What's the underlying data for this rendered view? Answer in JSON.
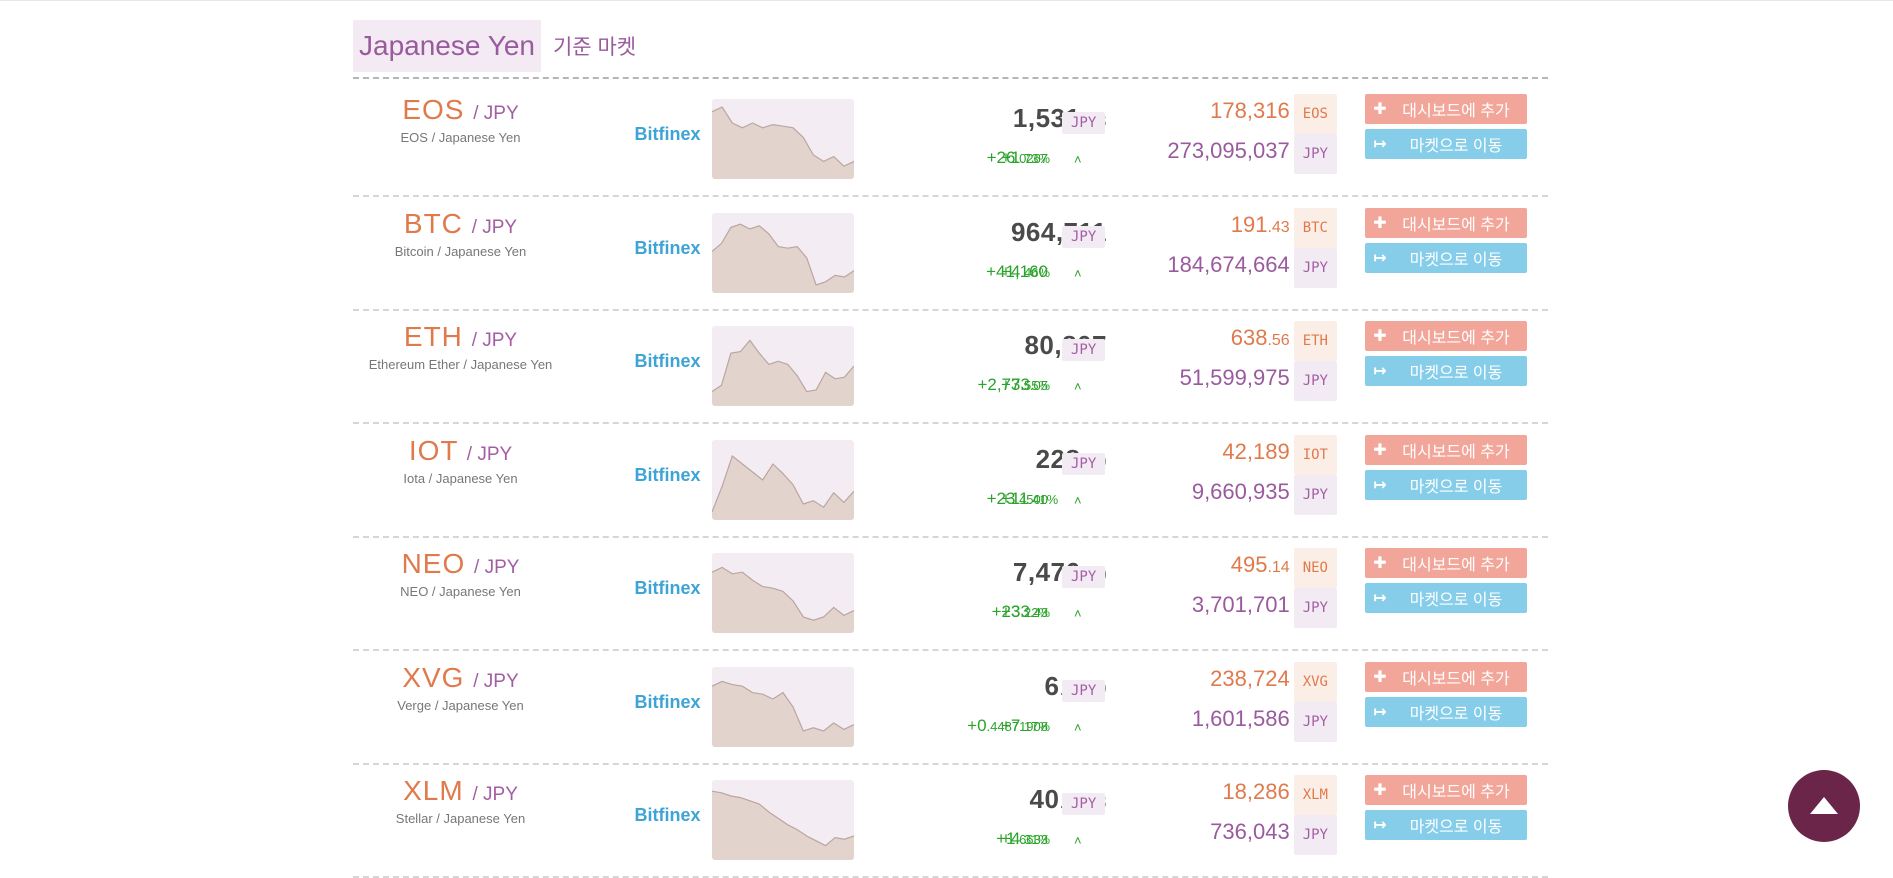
{
  "header": {
    "title": "Japanese Yen",
    "subtitle": "기준 마켓"
  },
  "buttons": {
    "add_label": "대시보드에 추가",
    "go_label": "마켓으로 이동"
  },
  "quote_tag": "JPY",
  "colors": {
    "accent_orange": "#e07a4c",
    "accent_purple": "#9a5a9e",
    "exchange_blue": "#3ea4d6",
    "positive_green": "#2aa32a",
    "add_button": "#f2a69a",
    "go_button": "#86cde9",
    "scroll_top_button": "#6a2549"
  },
  "markets": [
    {
      "symbol": "EOS",
      "quote": "/ JPY",
      "name": "EOS / Japanese Yen",
      "exchange": "Bitfinex",
      "price_int": "1,531",
      "price_dec": ".53",
      "change_int": "+26",
      "change_dec": ".0267",
      "pct_int": "+1",
      "pct_dec": ".73%",
      "vol_coin_int": "178,316",
      "vol_coin_dec": "",
      "vol_jpy": "273,095,037",
      "spark": [
        0.84,
        0.9,
        0.7,
        0.64,
        0.7,
        0.64,
        0.68,
        0.66,
        0.64,
        0.52,
        0.3,
        0.22,
        0.28,
        0.16,
        0.22
      ]
    },
    {
      "symbol": "BTC",
      "quote": "/ JPY",
      "name": "Bitcoin / Japanese Yen",
      "exchange": "Bitfinex",
      "price_int": "964,711",
      "price_dec": "",
      "change_int": "+41,160",
      "change_dec": "",
      "pct_int": "+4",
      "pct_dec": ".46%",
      "vol_coin_int": "191",
      "vol_coin_dec": ".43",
      "vol_jpy": "184,674,664",
      "spark": [
        0.52,
        0.62,
        0.82,
        0.86,
        0.8,
        0.84,
        0.74,
        0.58,
        0.56,
        0.58,
        0.44,
        0.1,
        0.14,
        0.22,
        0.2,
        0.28
      ]
    },
    {
      "symbol": "ETH",
      "quote": "/ JPY",
      "name": "Ethereum Ether / Japanese Yen",
      "exchange": "Bitfinex",
      "price_int": "80,807",
      "price_dec": "",
      "change_int": "+2,773",
      "change_dec": ".05",
      "pct_int": "+3",
      "pct_dec": ".55%",
      "vol_coin_int": "638",
      "vol_coin_dec": ".56",
      "vol_jpy": "51,599,975",
      "spark": [
        0.18,
        0.26,
        0.66,
        0.68,
        0.82,
        0.66,
        0.52,
        0.56,
        0.52,
        0.38,
        0.18,
        0.2,
        0.42,
        0.34,
        0.36,
        0.5
      ]
    },
    {
      "symbol": "IOT",
      "quote": "/ JPY",
      "name": "Iota / Japanese Yen",
      "exchange": "Bitfinex",
      "price_int": "228",
      "price_dec": ".99",
      "change_int": "+23",
      "change_dec": ".4500",
      "pct_int": "+11",
      "pct_dec": ".41%",
      "vol_coin_int": "42,189",
      "vol_coin_dec": "",
      "vol_jpy": "9,660,935",
      "spark": [
        0.1,
        0.42,
        0.8,
        0.7,
        0.6,
        0.5,
        0.7,
        0.58,
        0.44,
        0.2,
        0.24,
        0.16,
        0.34,
        0.22,
        0.36
      ]
    },
    {
      "symbol": "NEO",
      "quote": "/ JPY",
      "name": "NEO / Japanese Yen",
      "exchange": "Bitfinex",
      "price_int": "7,476",
      "price_dec": ".10",
      "change_int": "+233",
      "change_dec": ".43",
      "pct_int": "+3",
      "pct_dec": ".22%",
      "vol_coin_int": "495",
      "vol_coin_dec": ".14",
      "vol_jpy": "3,701,701",
      "spark": [
        0.76,
        0.82,
        0.74,
        0.76,
        0.66,
        0.58,
        0.56,
        0.52,
        0.4,
        0.2,
        0.16,
        0.2,
        0.32,
        0.22,
        0.28
      ]
    },
    {
      "symbol": "XVG",
      "quote": "/ JPY",
      "name": "Verge / Japanese Yen",
      "exchange": "Bitfinex",
      "price_int": "6",
      "price_dec": ".7089",
      "change_int": "+0",
      "change_dec": ".44871908",
      "pct_int": "+7",
      "pct_dec": ".17%",
      "vol_coin_int": "238,724",
      "vol_coin_dec": "",
      "vol_jpy": "1,601,586",
      "spark": [
        0.76,
        0.82,
        0.78,
        0.76,
        0.68,
        0.66,
        0.6,
        0.68,
        0.5,
        0.2,
        0.24,
        0.2,
        0.3,
        0.22,
        0.28
      ]
    },
    {
      "symbol": "XLM",
      "quote": "/ JPY",
      "name": "Stellar / Japanese Yen",
      "exchange": "Bitfinex",
      "price_int": "40",
      "price_dec": ".2523",
      "change_int": "+1",
      "change_dec": ".6633",
      "pct_int": "+4",
      "pct_dec": ".31%",
      "vol_coin_int": "18,286",
      "vol_coin_dec": "",
      "vol_jpy": "736,043",
      "spark": [
        0.86,
        0.84,
        0.8,
        0.78,
        0.74,
        0.7,
        0.6,
        0.52,
        0.44,
        0.38,
        0.3,
        0.24,
        0.18,
        0.28,
        0.26,
        0.3
      ]
    }
  ]
}
